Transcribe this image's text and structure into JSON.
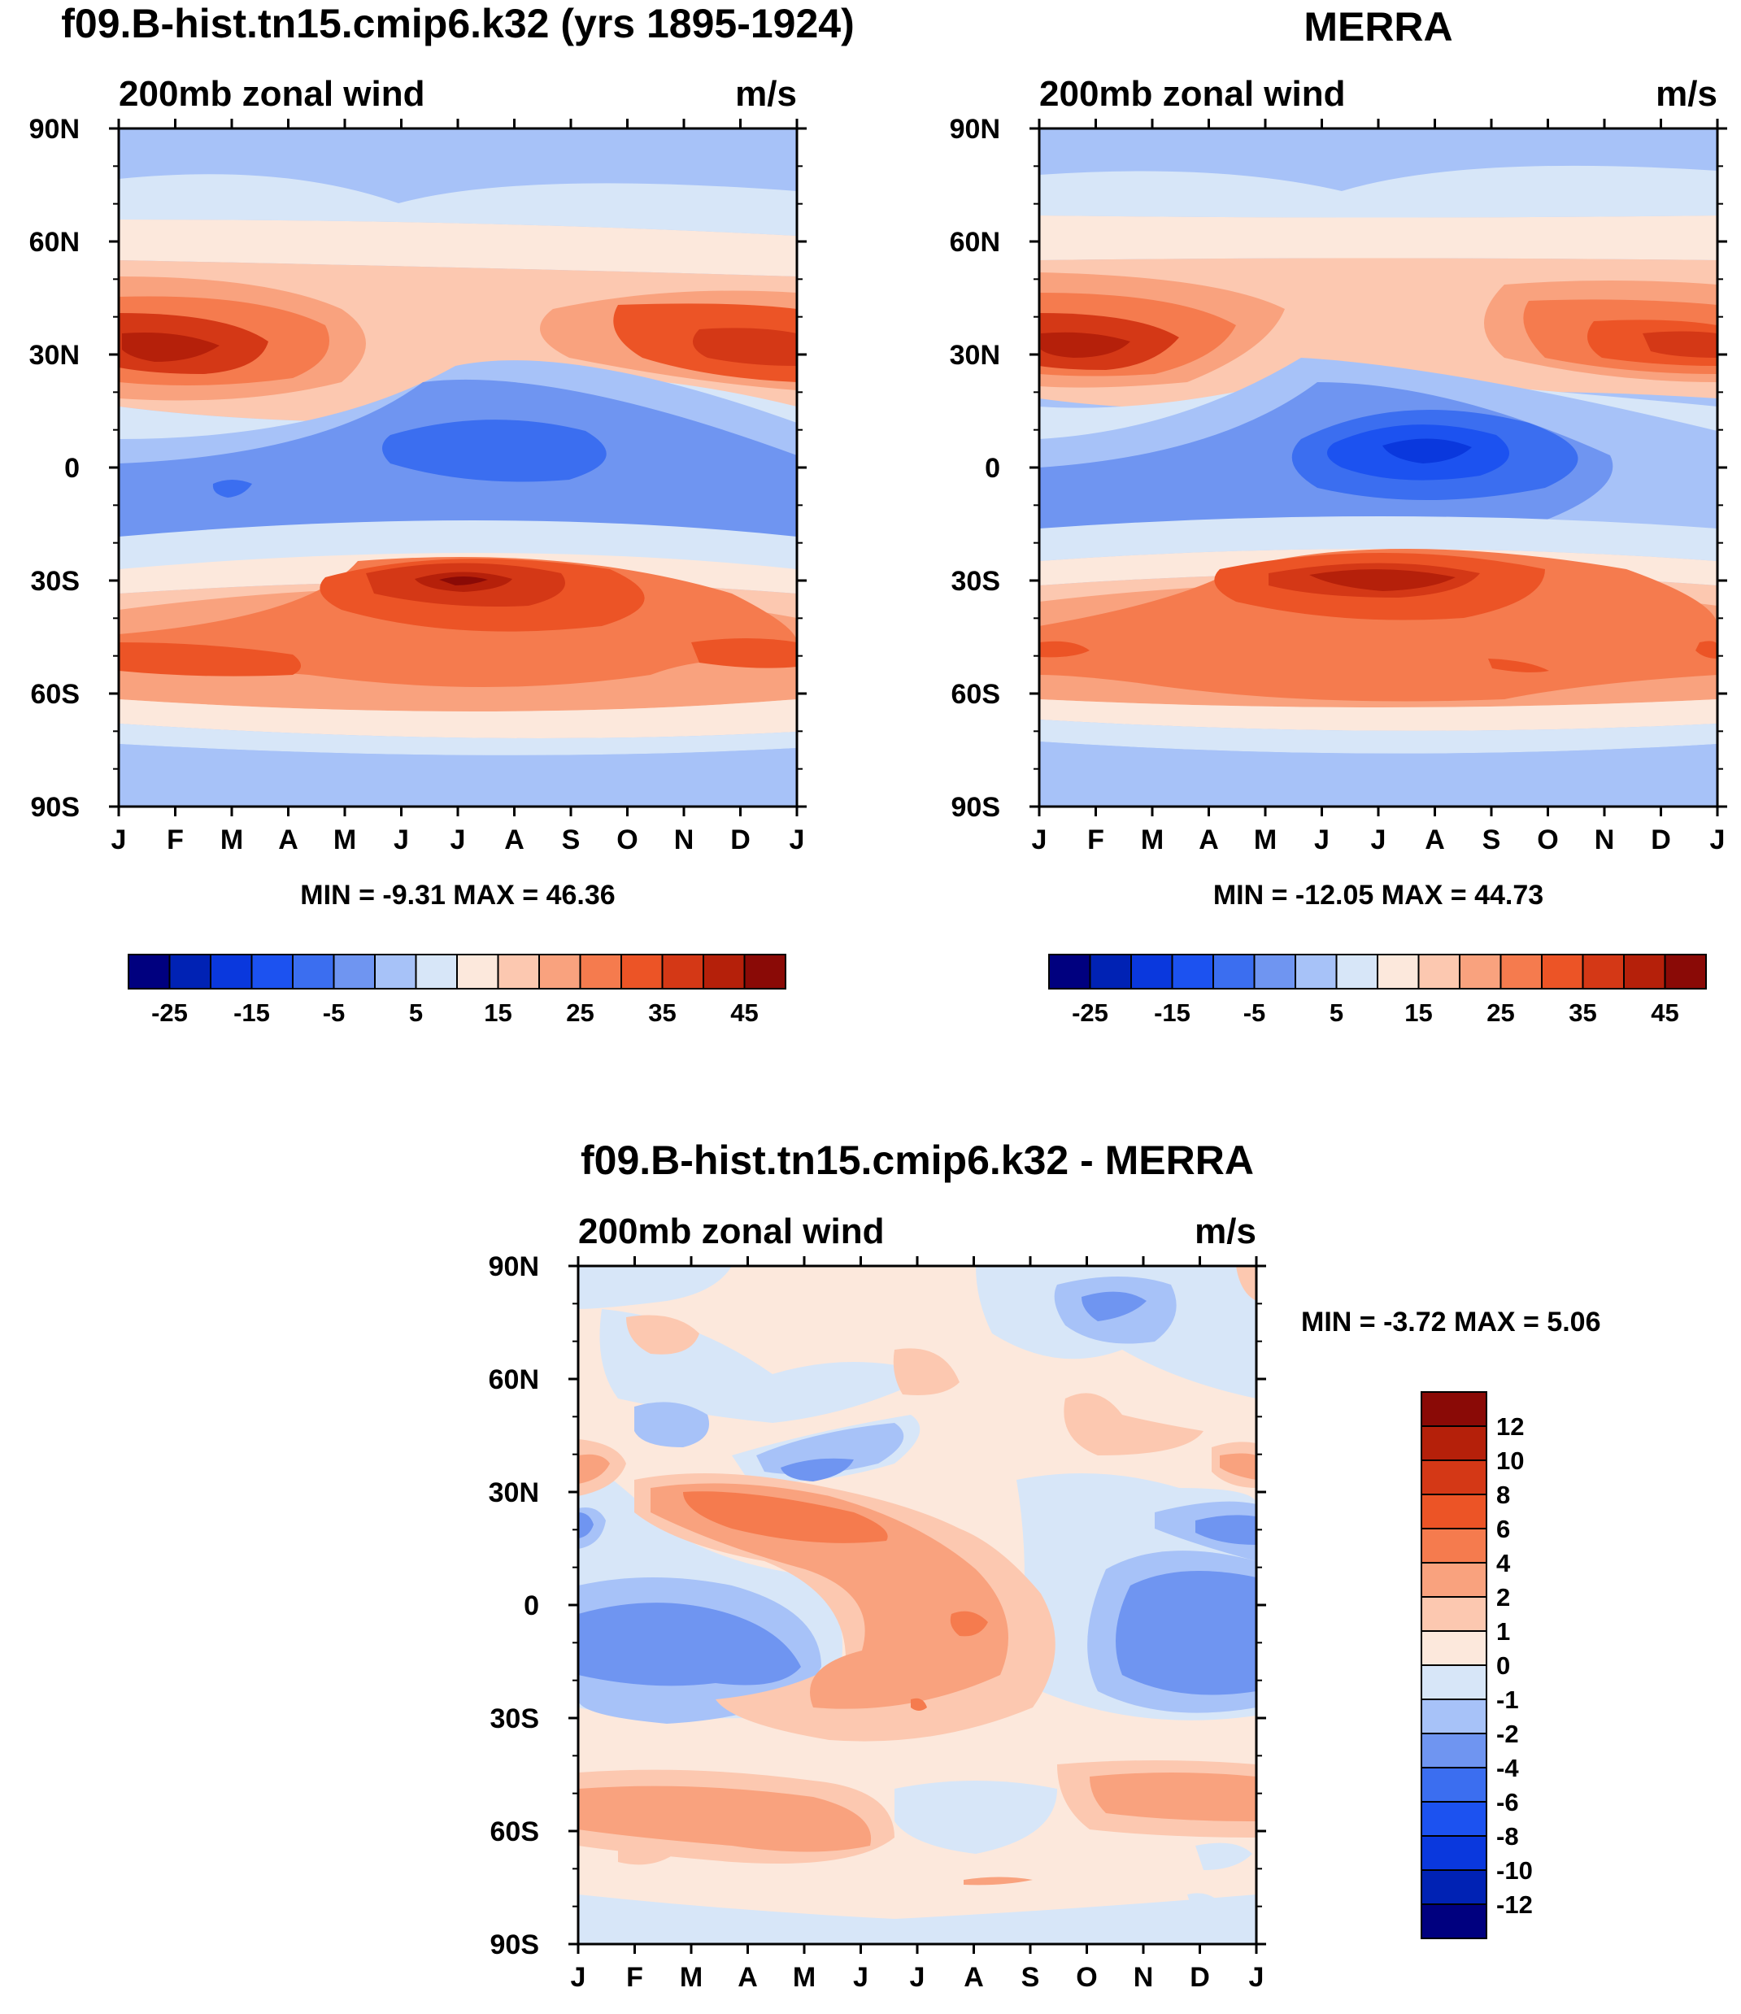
{
  "colors": {
    "plot_bg": "#ffffff",
    "axis": "#000000",
    "colormap_full": [
      "#00007f",
      "#0022b4",
      "#0a38dd",
      "#1c52f0",
      "#3b6ef0",
      "#6f95f1",
      "#a7c2f8",
      "#d7e6f8",
      "#fce8dc",
      "#fcc8b0",
      "#f9a27e",
      "#f57b4e",
      "#ec5426",
      "#d43816",
      "#b5200a",
      "#8a0a06"
    ],
    "colormap_diff": [
      "#8a0a06",
      "#b5200a",
      "#d43816",
      "#ec5426",
      "#f57b4e",
      "#f9a27e",
      "#fcc8b0",
      "#fce8dc",
      "#d7e6f8",
      "#a7c2f8",
      "#6f95f1",
      "#3b6ef0",
      "#1c52f0",
      "#0a38dd",
      "#0022b4",
      "#00007f"
    ]
  },
  "chart_data": [
    {
      "type": "heatmap",
      "panel": "model",
      "title": "f09.B-hist.tn15.cmip6.k32 (yrs 1895-1924)",
      "subtitle_left": "200mb zonal wind",
      "subtitle_right": "m/s",
      "x_tick_labels": [
        "J",
        "F",
        "M",
        "A",
        "M",
        "J",
        "J",
        "A",
        "S",
        "O",
        "N",
        "D",
        "J"
      ],
      "y_tick_labels": [
        "90N",
        "60N",
        "30N",
        "0",
        "30S",
        "60S",
        "90S"
      ],
      "y_values": [
        90,
        60,
        30,
        0,
        -30,
        -60,
        -90
      ],
      "xlim": [
        0,
        12
      ],
      "ylim": [
        -90,
        90
      ],
      "stats_text": "MIN =  -9.31 MAX =  46.36",
      "min": -9.31,
      "max": 46.36,
      "colorbar": {
        "orientation": "horizontal",
        "boxes": 16,
        "labels": [
          "-25",
          "-15",
          "-5",
          "5",
          "15",
          "25",
          "35",
          "45"
        ]
      },
      "features": [
        {
          "kind": "jet",
          "lat": 30,
          "month": 0.3,
          "peak": 46
        },
        {
          "kind": "jet",
          "lat": -30,
          "month": 6.0,
          "peak": 45
        },
        {
          "kind": "easterly",
          "lat": 4,
          "month": 7.0,
          "min": -9
        }
      ]
    },
    {
      "type": "heatmap",
      "panel": "observations",
      "title": "MERRA",
      "subtitle_left": "200mb zonal wind",
      "subtitle_right": "m/s",
      "x_tick_labels": [
        "J",
        "F",
        "M",
        "A",
        "M",
        "J",
        "J",
        "A",
        "S",
        "O",
        "N",
        "D",
        "J"
      ],
      "y_tick_labels": [
        "90N",
        "60N",
        "30N",
        "0",
        "30S",
        "60S",
        "90S"
      ],
      "y_values": [
        90,
        60,
        30,
        0,
        -30,
        -60,
        -90
      ],
      "xlim": [
        0,
        12
      ],
      "ylim": [
        -90,
        90
      ],
      "stats_text": "MIN = -12.05 MAX =  44.73",
      "min": -12.05,
      "max": 44.73,
      "colorbar": {
        "orientation": "horizontal",
        "boxes": 16,
        "labels": [
          "-25",
          "-15",
          "-5",
          "5",
          "15",
          "25",
          "35",
          "45"
        ]
      },
      "features": [
        {
          "kind": "jet",
          "lat": 30,
          "month": 0.5,
          "peak": 44
        },
        {
          "kind": "jet",
          "lat": -30,
          "month": 6.0,
          "peak": 44
        },
        {
          "kind": "easterly",
          "lat": 6,
          "month": 7.0,
          "min": -12
        }
      ]
    },
    {
      "type": "heatmap",
      "panel": "difference",
      "title": "f09.B-hist.tn15.cmip6.k32 - MERRA",
      "subtitle_left": "200mb zonal wind",
      "subtitle_right": "m/s",
      "x_tick_labels": [
        "J",
        "F",
        "M",
        "A",
        "M",
        "J",
        "J",
        "A",
        "S",
        "O",
        "N",
        "D",
        "J"
      ],
      "y_tick_labels": [
        "90N",
        "60N",
        "30N",
        "0",
        "30S",
        "60S",
        "90S"
      ],
      "y_values": [
        90,
        60,
        30,
        0,
        -30,
        -60,
        -90
      ],
      "xlim": [
        0,
        12
      ],
      "ylim": [
        -90,
        90
      ],
      "stats_text": "MIN =  -3.72 MAX =   5.06",
      "min": -3.72,
      "max": 5.06,
      "colorbar": {
        "orientation": "vertical",
        "boxes": 16,
        "labels": [
          "12",
          "10",
          "8",
          "6",
          "4",
          "2",
          "1",
          "0",
          "-1",
          "-2",
          "-4",
          "-6",
          "-8",
          "-10",
          "-12"
        ]
      },
      "levels": [
        -12,
        -10,
        -8,
        -6,
        -4,
        -2,
        -1,
        0,
        1,
        2,
        4,
        6,
        8,
        10,
        12
      ]
    }
  ]
}
